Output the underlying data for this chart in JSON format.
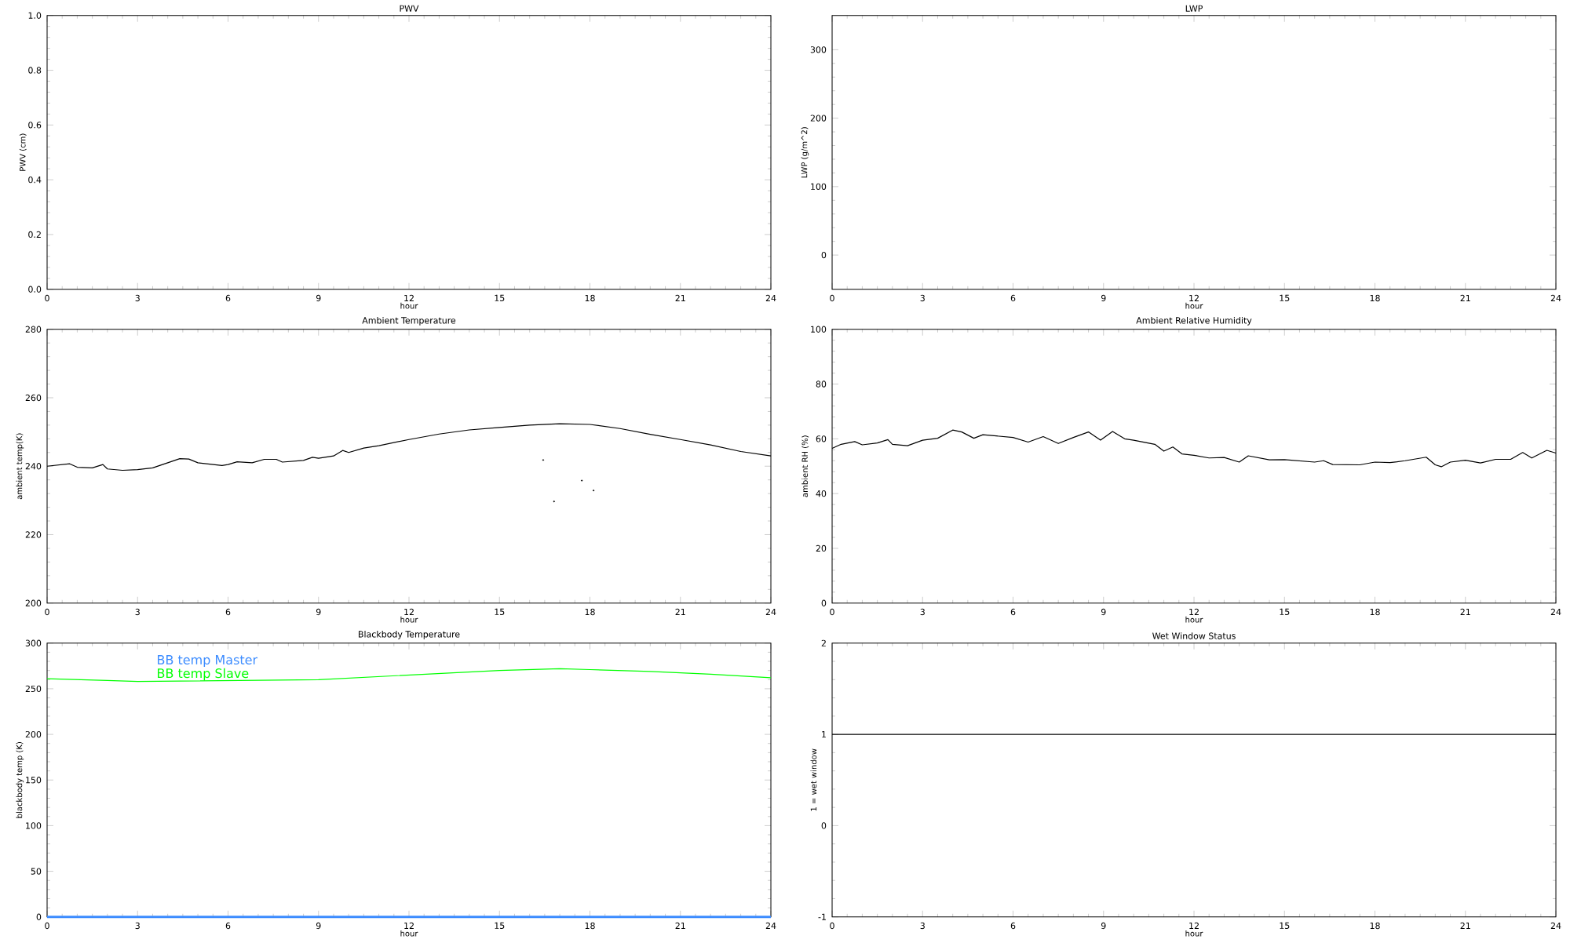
{
  "chart_data": [
    {
      "type": "line",
      "title": "PWV",
      "xlabel": "hour",
      "ylabel": "PWV (cm)",
      "xlim": [
        0,
        24
      ],
      "xticks": [
        0,
        3,
        6,
        9,
        12,
        15,
        18,
        21,
        24
      ],
      "ylim": [
        0,
        1
      ],
      "yticks": [
        {
          "value": 0,
          "label": "0.0"
        },
        {
          "value": 0.2,
          "label": "0.2"
        },
        {
          "value": 0.4,
          "label": "0.4"
        },
        {
          "value": 0.6,
          "label": "0.6"
        },
        {
          "value": 0.8,
          "label": "0.8"
        },
        {
          "value": 1,
          "label": "1.0"
        }
      ]
    },
    {
      "type": "line",
      "title": "LWP",
      "xlabel": "hour",
      "ylabel": "LWP (g/m^2)",
      "xlim": [
        0,
        24
      ],
      "xticks": [
        0,
        3,
        6,
        9,
        12,
        15,
        18,
        21,
        24
      ],
      "ylim": [
        -50,
        350
      ],
      "yticks": [
        0,
        100,
        200,
        300
      ]
    },
    {
      "type": "line",
      "title": "Ambient Temperature",
      "xlabel": "hour",
      "ylabel": "ambient temp(K)",
      "xlim": [
        0,
        24
      ],
      "xticks": [
        0,
        3,
        6,
        9,
        12,
        15,
        18,
        21,
        24
      ],
      "ylim": [
        200,
        280
      ],
      "yticks": [
        200,
        220,
        240,
        260,
        280
      ],
      "series": [
        {
          "color": "#000000",
          "x": [
            0,
            0.75,
            1,
            1.5,
            1.85,
            2,
            2.5,
            3,
            3.5,
            4,
            4.4,
            4.7,
            5,
            5.8,
            6,
            6.3,
            6.8,
            7.2,
            7.6,
            7.8,
            8.5,
            8.8,
            9,
            9.5,
            9.8,
            10,
            10.5,
            11,
            12,
            13,
            14,
            15,
            16,
            17,
            18,
            19,
            20,
            21,
            22,
            23,
            24
          ],
          "values": [
            240.0,
            240.7,
            239.7,
            239.5,
            240.5,
            239.2,
            238.8,
            239.0,
            239.5,
            241.0,
            242.2,
            242.1,
            241.0,
            240.2,
            240.5,
            241.3,
            241.0,
            242.0,
            242.0,
            241.2,
            241.7,
            242.6,
            242.3,
            243.0,
            244.6,
            244.0,
            245.3,
            246.0,
            247.8,
            249.4,
            250.6,
            251.3,
            252.0,
            252.4,
            252.2,
            251.0,
            249.3,
            247.8,
            246.2,
            244.3,
            243.0
          ]
        },
        {
          "type": "scatter",
          "color": "#000000",
          "x": [
            16.45,
            16.81,
            17.73,
            18.12
          ],
          "values": [
            241.8,
            229.7,
            235.8,
            232.9
          ]
        }
      ]
    },
    {
      "type": "line",
      "title": "Ambient Relative Humidity",
      "xlabel": "hour",
      "ylabel": "ambient RH (%)",
      "xlim": [
        0,
        24
      ],
      "xticks": [
        0,
        3,
        6,
        9,
        12,
        15,
        18,
        21,
        24
      ],
      "ylim": [
        0,
        100
      ],
      "yticks": [
        0,
        20,
        40,
        60,
        80,
        100
      ],
      "series": [
        {
          "color": "#000000",
          "x": [
            0,
            0.3,
            0.75,
            1,
            1.5,
            1.85,
            2,
            2.5,
            3,
            3.5,
            4,
            4.3,
            4.7,
            5,
            6,
            6.5,
            7,
            7.5,
            8,
            8.5,
            8.9,
            9.3,
            9.7,
            10,
            10.7,
            11,
            11.3,
            11.6,
            12,
            12.5,
            13,
            13.5,
            13.8,
            14.5,
            15,
            16,
            16.3,
            16.6,
            17.5,
            18,
            18.5,
            19,
            19.7,
            20,
            20.2,
            20.5,
            21,
            21.5,
            22,
            22.5,
            22.9,
            23.2,
            23.7,
            24
          ],
          "values": [
            56.5,
            58,
            59,
            57.8,
            58.5,
            59.7,
            58,
            57.5,
            59.5,
            60.2,
            63.2,
            62.5,
            60.2,
            61.5,
            60.5,
            58.8,
            60.8,
            58.3,
            60.5,
            62.5,
            59.5,
            62.7,
            60.0,
            59.5,
            58.0,
            55.5,
            57,
            54.5,
            54.0,
            53.0,
            53.2,
            51.5,
            53.8,
            52.3,
            52.4,
            51.5,
            52.0,
            50.6,
            50.5,
            51.5,
            51.3,
            52,
            53.3,
            50.5,
            49.8,
            51.5,
            52.2,
            51.2,
            52.5,
            52.5,
            55.0,
            53,
            55.8,
            54.8
          ]
        }
      ]
    },
    {
      "type": "line",
      "title": "Blackbody Temperature",
      "xlabel": "hour",
      "ylabel": "blackbody temp (K)",
      "xlim": [
        0,
        24
      ],
      "xticks": [
        0,
        3,
        6,
        9,
        12,
        15,
        18,
        21,
        24
      ],
      "ylim": [
        0,
        300
      ],
      "yticks": [
        0,
        50,
        100,
        150,
        200,
        250,
        300
      ],
      "legend": "top left",
      "series": [
        {
          "name": "BB temp Master",
          "color": "#3c8cff",
          "x": [
            0,
            24
          ],
          "values": [
            0,
            0
          ]
        },
        {
          "name": "BB temp Slave",
          "color": "#00ff00",
          "x": [
            0,
            2,
            3,
            6,
            9,
            12,
            15,
            17,
            18,
            20,
            22,
            24
          ],
          "values": [
            261,
            259,
            258,
            259,
            260,
            265,
            270,
            272,
            271,
            269,
            266,
            262
          ]
        }
      ]
    },
    {
      "type": "line",
      "title": "Wet Window Status",
      "xlabel": "hour",
      "ylabel": "1 = wet window",
      "xlim": [
        0,
        24
      ],
      "xticks": [
        0,
        3,
        6,
        9,
        12,
        15,
        18,
        21,
        24
      ],
      "ylim": [
        -1,
        2
      ],
      "yticks": [
        -1,
        0,
        1,
        2
      ],
      "series": [
        {
          "color": "#000000",
          "x": [
            0,
            24
          ],
          "values": [
            1,
            1
          ]
        }
      ]
    }
  ]
}
